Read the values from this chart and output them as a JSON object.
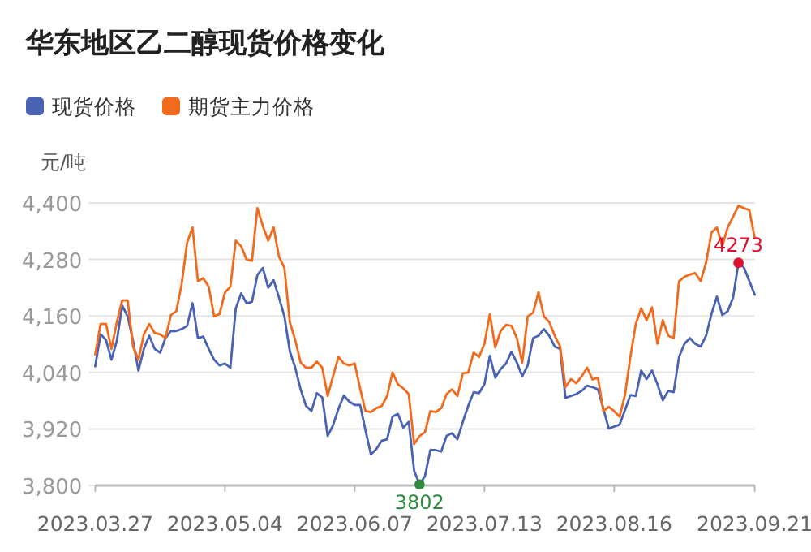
{
  "chart_data": {
    "type": "line",
    "title": "华东地区乙二醇现货价格变化",
    "ylabel": "元/吨",
    "categories": [
      "2023.03.27",
      null,
      null,
      null,
      null,
      null,
      null,
      null,
      null,
      null,
      null,
      null,
      null,
      null,
      null,
      null,
      null,
      null,
      null,
      null,
      null,
      null,
      null,
      null,
      "2023.05.04",
      null,
      null,
      null,
      null,
      null,
      null,
      null,
      null,
      null,
      null,
      null,
      null,
      null,
      null,
      null,
      null,
      null,
      null,
      null,
      null,
      null,
      null,
      null,
      "2023.06.07",
      null,
      null,
      null,
      null,
      null,
      null,
      null,
      null,
      null,
      null,
      null,
      null,
      null,
      null,
      null,
      null,
      null,
      null,
      null,
      null,
      null,
      null,
      null,
      "2023.07.13",
      null,
      null,
      null,
      null,
      null,
      null,
      null,
      null,
      null,
      null,
      null,
      null,
      null,
      null,
      null,
      null,
      null,
      null,
      null,
      null,
      null,
      null,
      null,
      "2023.08.16",
      null,
      null,
      null,
      null,
      null,
      null,
      null,
      null,
      null,
      null,
      null,
      null,
      null,
      null,
      null,
      null,
      null,
      null,
      null,
      null,
      null,
      null,
      null,
      null,
      null,
      "2023.09.21"
    ],
    "series": [
      {
        "name": "现货价格",
        "color": "#4a62b4",
        "values": [
          4053,
          4121,
          4109,
          4067,
          4107,
          4182,
          4159,
          4107,
          4044,
          4090,
          4118,
          4090,
          4082,
          4113,
          4128,
          4128,
          4132,
          4139,
          4187,
          4113,
          4116,
          4090,
          4067,
          4055,
          4059,
          4050,
          4176,
          4208,
          4187,
          4190,
          4247,
          4262,
          4220,
          4236,
          4199,
          4159,
          4085,
          4050,
          4004,
          3969,
          3958,
          3996,
          3987,
          3905,
          3928,
          3963,
          3991,
          3978,
          3971,
          3971,
          3917,
          3866,
          3877,
          3895,
          3898,
          3946,
          3952,
          3923,
          3935,
          3831,
          3802,
          3820,
          3875,
          3875,
          3872,
          3905,
          3911,
          3898,
          3935,
          3969,
          3998,
          3996,
          4015,
          4075,
          4029,
          4047,
          4059,
          4084,
          4061,
          4032,
          4055,
          4113,
          4118,
          4132,
          4118,
          4095,
          4090,
          3986,
          3990,
          3994,
          4001,
          4012,
          4009,
          4004,
          3963,
          3921,
          3925,
          3929,
          3960,
          3992,
          3990,
          4044,
          4026,
          4044,
          4015,
          3981,
          4001,
          3998,
          4073,
          4101,
          4113,
          4101,
          4095,
          4118,
          4164,
          4201,
          4162,
          4170,
          4199,
          4273,
          4263,
          4234,
          4205
        ],
        "value_labels": [
          null,
          null,
          null,
          null,
          null,
          null,
          null,
          null,
          null,
          null,
          null,
          null,
          null,
          null,
          null,
          null,
          null,
          null,
          null,
          null,
          null,
          null,
          null,
          null,
          null,
          null,
          null,
          null,
          null,
          null,
          null,
          null,
          null,
          null,
          null,
          null,
          null,
          null,
          null,
          null,
          null,
          null,
          null,
          null,
          null,
          null,
          null,
          null,
          null,
          null,
          null,
          null,
          null,
          null,
          null,
          null,
          null,
          null,
          null,
          null,
          "3802",
          null,
          null,
          null,
          null,
          null,
          null,
          null,
          null,
          null,
          null,
          null,
          null,
          null,
          null,
          null,
          null,
          null,
          null,
          null,
          null,
          null,
          null,
          null,
          null,
          null,
          null,
          null,
          null,
          null,
          null,
          null,
          null,
          null,
          null,
          null,
          null,
          null,
          null,
          null,
          null,
          null,
          null,
          null,
          null,
          null,
          null,
          null,
          null,
          null,
          null,
          null,
          null,
          null,
          null,
          null,
          null,
          null,
          null,
          "4273",
          null,
          null,
          null
        ]
      },
      {
        "name": "期货主力价格",
        "color": "#f26b1d",
        "values": [
          4078,
          4143,
          4143,
          4090,
          4147,
          4193,
          4193,
          4095,
          4067,
          4121,
          4143,
          4124,
          4121,
          4113,
          4162,
          4170,
          4228,
          4316,
          4348,
          4234,
          4240,
          4222,
          4159,
          4164,
          4210,
          4222,
          4320,
          4308,
          4280,
          4277,
          4389,
          4351,
          4320,
          4348,
          4286,
          4262,
          4147,
          4109,
          4061,
          4050,
          4050,
          4063,
          4050,
          3990,
          4032,
          4073,
          4059,
          4055,
          4059,
          4006,
          3958,
          3956,
          3964,
          3969,
          3990,
          4040,
          4015,
          4006,
          3994,
          3888,
          3905,
          3913,
          3958,
          3956,
          3964,
          3994,
          4004,
          3990,
          4038,
          4040,
          4082,
          4073,
          4101,
          4164,
          4093,
          4128,
          4141,
          4139,
          4113,
          4061,
          4159,
          4167,
          4210,
          4159,
          4147,
          4118,
          4095,
          4009,
          4026,
          4017,
          4032,
          4050,
          4025,
          4029,
          3958,
          3967,
          3958,
          3946,
          3992,
          4073,
          4143,
          4176,
          4151,
          4178,
          4101,
          4151,
          4118,
          4113,
          4234,
          4243,
          4248,
          4251,
          4234,
          4273,
          4337,
          4348,
          4308,
          4348,
          4371,
          4394,
          4389,
          4385,
          4325
        ]
      }
    ],
    "ylim": [
      3800,
      4400
    ],
    "yticks": [
      {
        "value": 3800,
        "label": "3,800"
      },
      {
        "value": 3920,
        "label": "3,920"
      },
      {
        "value": 4040,
        "label": "4,040"
      },
      {
        "value": 4160,
        "label": "4,160"
      },
      {
        "value": 4280,
        "label": "4,280"
      },
      {
        "value": 4400,
        "label": "4,400"
      }
    ],
    "grid": "y",
    "legend": "top left",
    "marker": "none",
    "line_style": "solid"
  }
}
